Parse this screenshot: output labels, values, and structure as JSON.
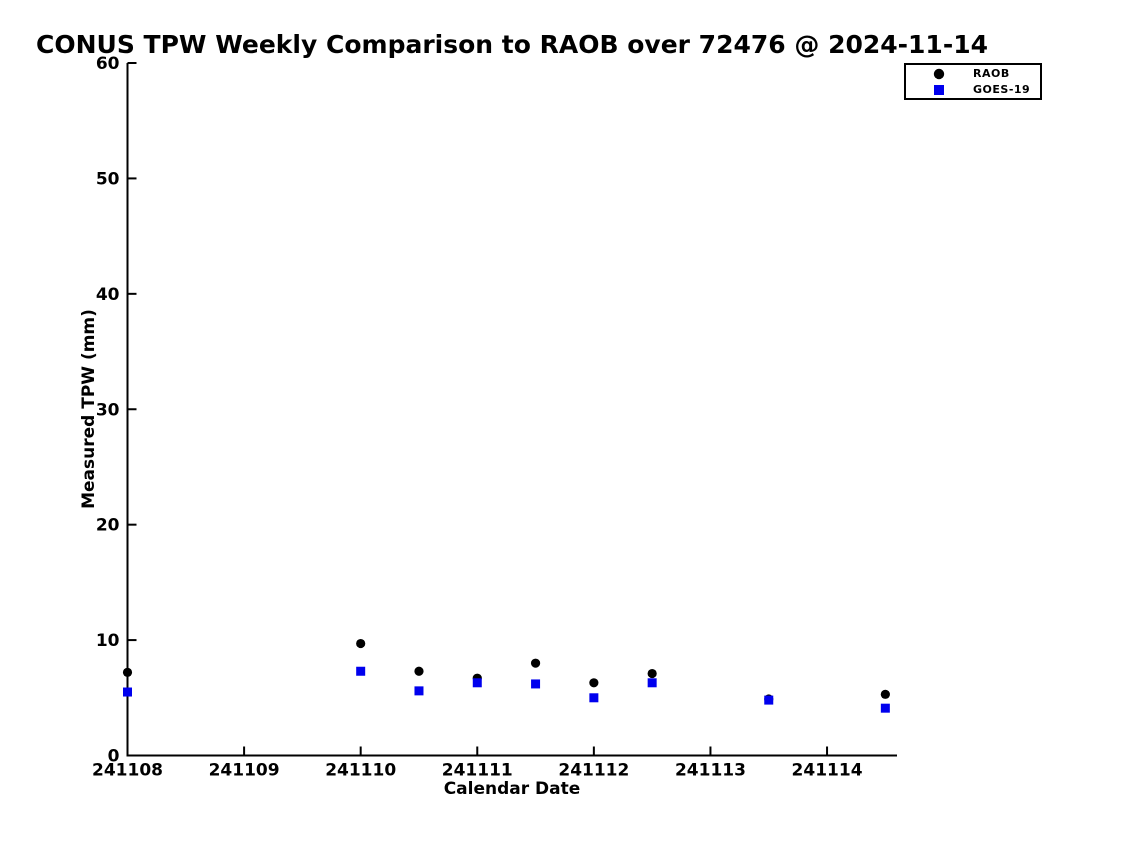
{
  "chart_data": {
    "type": "scatter",
    "title": "CONUS TPW Weekly Comparison to RAOB over 72476 @ 2024-11-14",
    "xlabel": "Calendar Date",
    "ylabel": "Measured TPW (mm)",
    "xlim": [
      241108,
      241114.6
    ],
    "ylim": [
      0,
      60
    ],
    "x_ticks": [
      241108,
      241109,
      241110,
      241111,
      241112,
      241113,
      241114
    ],
    "x_tick_labels": [
      "241108",
      "241109",
      "241110",
      "241111",
      "241112",
      "241113",
      "241114"
    ],
    "y_ticks": [
      0,
      10,
      20,
      30,
      40,
      50,
      60
    ],
    "y_tick_labels": [
      "0",
      "10",
      "20",
      "30",
      "40",
      "50",
      "60"
    ],
    "grid": false,
    "legend_position": "top-right",
    "series": [
      {
        "name": "RAOB",
        "marker": "circle",
        "color": "#000000",
        "x": [
          241108.0,
          241110.0,
          241110.5,
          241111.0,
          241111.5,
          241112.0,
          241112.5,
          241113.5,
          241114.5
        ],
        "y": [
          7.2,
          9.7,
          7.3,
          6.7,
          8.0,
          6.3,
          7.1,
          4.9,
          5.3
        ]
      },
      {
        "name": "GOES-19",
        "marker": "square",
        "color": "#0000ee",
        "x": [
          241108.0,
          241110.0,
          241110.5,
          241111.0,
          241111.5,
          241112.0,
          241112.5,
          241113.5,
          241114.5
        ],
        "y": [
          5.5,
          7.3,
          5.6,
          6.3,
          6.2,
          5.0,
          6.3,
          4.8,
          4.1
        ]
      }
    ]
  },
  "colors": {
    "axis": "#000000",
    "background": "#ffffff",
    "raob": "#000000",
    "goes19": "#0000ee"
  }
}
